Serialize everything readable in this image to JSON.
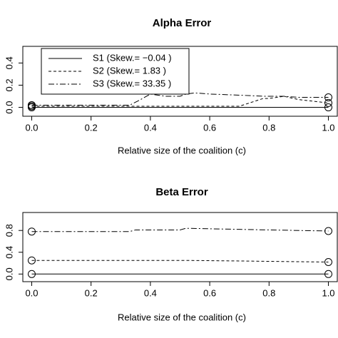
{
  "chart_data": [
    {
      "type": "line",
      "title": "Alpha Error",
      "x_label": "Relative size of the coalition (c)",
      "x": [
        0,
        0.33,
        0.36,
        0.4,
        0.45,
        0.5,
        0.52,
        0.55,
        0.6,
        0.7,
        0.78,
        0.8,
        0.85,
        0.9,
        1.0
      ],
      "series": [
        {
          "name": "S1 (Skew.= −0.04 )",
          "color": "#000000",
          "linestyle": "solid",
          "values": [
            0,
            0,
            0,
            0,
            0,
            0,
            0,
            0,
            0,
            0,
            0,
            0,
            0,
            0,
            0
          ]
        },
        {
          "name": "S2 (Skew.= 1.83 )",
          "color": "#000000",
          "linestyle": "dashed",
          "values": [
            0.01,
            0.01,
            0.01,
            0.01,
            0.01,
            0.01,
            0.01,
            0.01,
            0.01,
            0.01,
            0.08,
            0.08,
            0.1,
            0.07,
            0.04
          ]
        },
        {
          "name": "S3 (Skew.= 33.35 )",
          "color": "#000000",
          "linestyle": "dotdash",
          "values": [
            0.02,
            0.02,
            0.06,
            0.12,
            0.1,
            0.1,
            0.12,
            0.13,
            0.12,
            0.11,
            0.1,
            0.1,
            0.1,
            0.09,
            0.09
          ]
        }
      ],
      "xlim": [
        -0.03,
        1.03
      ],
      "ylim": [
        -0.08,
        0.55
      ],
      "xticks": [
        {
          "value": 0,
          "label": "0.0"
        },
        {
          "value": 0.2,
          "label": "0.2"
        },
        {
          "value": 0.4,
          "label": "0.4"
        },
        {
          "value": 0.6,
          "label": "0.6"
        },
        {
          "value": 0.8,
          "label": "0.8"
        },
        {
          "value": 1,
          "label": "1.0"
        }
      ],
      "yticks": [
        {
          "value": 0,
          "label": "0.0"
        },
        {
          "value": 0.2,
          "label": "0.2"
        },
        {
          "value": 0.4,
          "label": "0.4"
        }
      ],
      "legend": "top-left"
    },
    {
      "type": "line",
      "title": "Beta Error",
      "x_label": "Relative size of the coalition (c)",
      "x": [
        0,
        0.33,
        0.35,
        0.5,
        0.52,
        0.7,
        1.0
      ],
      "series": [
        {
          "color": "#000000",
          "linestyle": "solid",
          "values": [
            0,
            0,
            0,
            0,
            0,
            0,
            0
          ]
        },
        {
          "color": "#000000",
          "linestyle": "dashed",
          "values": [
            0.25,
            0.25,
            0.25,
            0.25,
            0.25,
            0.24,
            0.22
          ]
        },
        {
          "color": "#000000",
          "linestyle": "dotdash",
          "values": [
            0.78,
            0.78,
            0.81,
            0.81,
            0.84,
            0.82,
            0.79
          ]
        }
      ],
      "xlim": [
        -0.03,
        1.03
      ],
      "ylim": [
        -0.14,
        1.13
      ],
      "xticks": [
        {
          "value": 0,
          "label": "0.0"
        },
        {
          "value": 0.2,
          "label": "0.2"
        },
        {
          "value": 0.4,
          "label": "0.4"
        },
        {
          "value": 0.6,
          "label": "0.6"
        },
        {
          "value": 0.8,
          "label": "0.8"
        },
        {
          "value": 1,
          "label": "1.0"
        }
      ],
      "yticks": [
        {
          "value": 0,
          "label": "0.0"
        },
        {
          "value": 0.4,
          "label": "0.4"
        },
        {
          "value": 0.8,
          "label": "0.8"
        }
      ]
    }
  ]
}
